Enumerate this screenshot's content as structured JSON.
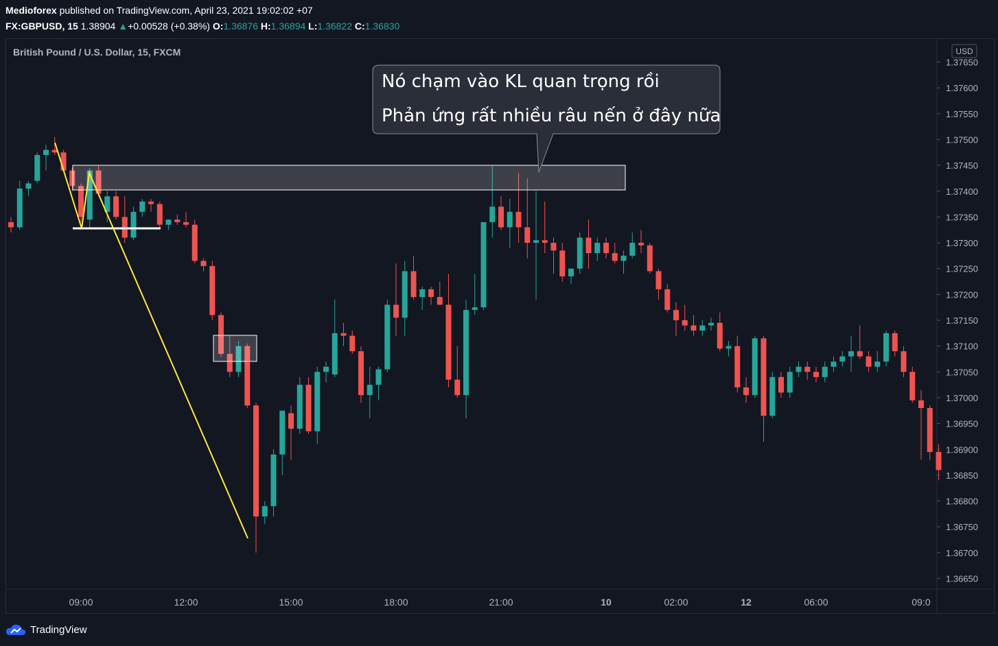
{
  "header": {
    "publisher": "Medioforex",
    "published_text": "published on TradingView.com, April 23, 2021 19:02:02 +07",
    "symbol": "FX:GBPUSD, 15",
    "last": "1.38904",
    "change_arrow": "▲",
    "change": "+0.00528 (+0.38%)",
    "o_label": "O:",
    "o": "1.36876",
    "h_label": "H:",
    "h": "1.36894",
    "l_label": "L:",
    "l": "1.36822",
    "c_label": "C:",
    "c": "1.36830"
  },
  "chart_title": "British Pound / U.S. Dollar, 15, FXCM",
  "currency": "USD",
  "annotation": {
    "line1": "Nó chạm vào KL quan trọng rồi",
    "line2": "Phản ứng rất nhiều râu nến ở đây nữa"
  },
  "footer": {
    "brand": "TradingView"
  },
  "colors": {
    "up": "#26a69a",
    "down": "#ef5350",
    "background": "#131722",
    "trendline": "#ffeb3b"
  },
  "chart_data": {
    "type": "candlestick",
    "title": "British Pound / U.S. Dollar, 15, FXCM",
    "y_ticks": [
      "1.37650",
      "1.37600",
      "1.37550",
      "1.37500",
      "1.37450",
      "1.37400",
      "1.37350",
      "1.37300",
      "1.37250",
      "1.37200",
      "1.37150",
      "1.37100",
      "1.37050",
      "1.37000",
      "1.36950",
      "1.36900",
      "1.36850",
      "1.36800",
      "1.36750",
      "1.36700",
      "1.36650"
    ],
    "x_ticks": [
      {
        "label": "09:00",
        "index": 8
      },
      {
        "label": "12:00",
        "index": 20
      },
      {
        "label": "15:00",
        "index": 32
      },
      {
        "label": "18:00",
        "index": 44
      },
      {
        "label": "21:00",
        "index": 56
      },
      {
        "label": "10",
        "index": 68
      },
      {
        "label": "02:00",
        "index": 76
      },
      {
        "label": "12",
        "index": 84
      },
      {
        "label": "06:00",
        "index": 92
      },
      {
        "label": "09:0",
        "index": 104
      }
    ],
    "ylim": [
      1.3663,
      1.3768
    ],
    "candles": [
      [
        1.3734,
        1.3735,
        1.3732,
        1.3733
      ],
      [
        1.3733,
        1.3742,
        1.37325,
        1.37405
      ],
      [
        1.37405,
        1.3742,
        1.3739,
        1.37415
      ],
      [
        1.3742,
        1.37475,
        1.37415,
        1.3747
      ],
      [
        1.3747,
        1.3749,
        1.3744,
        1.3748
      ],
      [
        1.3748,
        1.37505,
        1.3747,
        1.37475
      ],
      [
        1.37475,
        1.3748,
        1.3744,
        1.3744
      ],
      [
        1.3744,
        1.37445,
        1.374,
        1.3741
      ],
      [
        1.3741,
        1.37415,
        1.3734,
        1.3735
      ],
      [
        1.37345,
        1.37445,
        1.3733,
        1.3744
      ],
      [
        1.3744,
        1.3745,
        1.3739,
        1.37395
      ],
      [
        1.3736,
        1.374,
        1.3734,
        1.3739
      ],
      [
        1.3739,
        1.374,
        1.37345,
        1.3735
      ],
      [
        1.3735,
        1.3739,
        1.373,
        1.3731
      ],
      [
        1.3731,
        1.3737,
        1.37305,
        1.3736
      ],
      [
        1.3736,
        1.37385,
        1.3735,
        1.3738
      ],
      [
        1.3738,
        1.37385,
        1.3736,
        1.37375
      ],
      [
        1.37375,
        1.3738,
        1.3733,
        1.37335
      ],
      [
        1.37335,
        1.37345,
        1.37325,
        1.37345
      ],
      [
        1.37345,
        1.37355,
        1.37335,
        1.3734
      ],
      [
        1.3734,
        1.3736,
        1.3733,
        1.37335
      ],
      [
        1.37335,
        1.37345,
        1.3726,
        1.37265
      ],
      [
        1.37265,
        1.3727,
        1.37245,
        1.37255
      ],
      [
        1.37255,
        1.37265,
        1.3715,
        1.3716
      ],
      [
        1.3716,
        1.37165,
        1.3708,
        1.37085
      ],
      [
        1.37085,
        1.3712,
        1.3704,
        1.3705
      ],
      [
        1.3705,
        1.3711,
        1.3704,
        1.371
      ],
      [
        1.371,
        1.37105,
        1.3698,
        1.36985
      ],
      [
        1.36985,
        1.3699,
        1.367,
        1.3677
      ],
      [
        1.3677,
        1.368,
        1.36755,
        1.3679
      ],
      [
        1.3679,
        1.369,
        1.3677,
        1.3689
      ],
      [
        1.3689,
        1.3697,
        1.3685,
        1.36975
      ],
      [
        1.3697,
        1.36985,
        1.3688,
        1.3694
      ],
      [
        1.3694,
        1.3704,
        1.3693,
        1.37025
      ],
      [
        1.37025,
        1.3704,
        1.3693,
        1.36935
      ],
      [
        1.36935,
        1.3706,
        1.3691,
        1.3705
      ],
      [
        1.3705,
        1.3707,
        1.3703,
        1.3706
      ],
      [
        1.37045,
        1.3719,
        1.3704,
        1.37125
      ],
      [
        1.37125,
        1.37145,
        1.371,
        1.3712
      ],
      [
        1.3712,
        1.3713,
        1.37085,
        1.3709
      ],
      [
        1.3709,
        1.371,
        1.3699,
        1.37005
      ],
      [
        1.37005,
        1.3706,
        1.3696,
        1.37025
      ],
      [
        1.37025,
        1.3706,
        1.36995,
        1.37055
      ],
      [
        1.37055,
        1.3719,
        1.3705,
        1.3718
      ],
      [
        1.3718,
        1.3726,
        1.3712,
        1.37155
      ],
      [
        1.37155,
        1.37265,
        1.3712,
        1.37245
      ],
      [
        1.37245,
        1.37275,
        1.3719,
        1.37195
      ],
      [
        1.37195,
        1.37215,
        1.3717,
        1.3721
      ],
      [
        1.3721,
        1.37215,
        1.3718,
        1.37195
      ],
      [
        1.37195,
        1.37225,
        1.3718,
        1.3718
      ],
      [
        1.3718,
        1.3724,
        1.3702,
        1.37035
      ],
      [
        1.37035,
        1.371,
        1.37,
        1.37005
      ],
      [
        1.37005,
        1.3719,
        1.3696,
        1.3717
      ],
      [
        1.3717,
        1.3724,
        1.3716,
        1.37175
      ],
      [
        1.37175,
        1.3734,
        1.3717,
        1.3734
      ],
      [
        1.3734,
        1.3745,
        1.3731,
        1.3737
      ],
      [
        1.3737,
        1.3739,
        1.37325,
        1.3733
      ],
      [
        1.3733,
        1.37385,
        1.3729,
        1.3736
      ],
      [
        1.3736,
        1.37435,
        1.373,
        1.3733
      ],
      [
        1.3733,
        1.37425,
        1.3727,
        1.373
      ],
      [
        1.373,
        1.374,
        1.3719,
        1.37305
      ],
      [
        1.37305,
        1.3738,
        1.3728,
        1.373
      ],
      [
        1.373,
        1.3731,
        1.3724,
        1.37285
      ],
      [
        1.37285,
        1.373,
        1.37225,
        1.37235
      ],
      [
        1.37235,
        1.3725,
        1.3722,
        1.3725
      ],
      [
        1.3725,
        1.3732,
        1.3724,
        1.3731
      ],
      [
        1.3731,
        1.37345,
        1.3725,
        1.3728
      ],
      [
        1.3728,
        1.3731,
        1.37265,
        1.373
      ],
      [
        1.373,
        1.3731,
        1.3727,
        1.3728
      ],
      [
        1.3728,
        1.373,
        1.3726,
        1.37265
      ],
      [
        1.37265,
        1.37285,
        1.3724,
        1.37275
      ],
      [
        1.37275,
        1.3732,
        1.3727,
        1.373
      ],
      [
        1.373,
        1.37325,
        1.3728,
        1.37295
      ],
      [
        1.37295,
        1.373,
        1.3724,
        1.37245
      ],
      [
        1.37245,
        1.3725,
        1.3719,
        1.3721
      ],
      [
        1.3721,
        1.3722,
        1.37165,
        1.3717
      ],
      [
        1.3717,
        1.37185,
        1.3712,
        1.3715
      ],
      [
        1.3715,
        1.3718,
        1.3713,
        1.3714
      ],
      [
        1.3714,
        1.3716,
        1.3712,
        1.3713
      ],
      [
        1.3713,
        1.3715,
        1.3712,
        1.3714
      ],
      [
        1.3714,
        1.37155,
        1.3713,
        1.37145
      ],
      [
        1.37145,
        1.37165,
        1.3709,
        1.37095
      ],
      [
        1.37095,
        1.3711,
        1.3708,
        1.371
      ],
      [
        1.371,
        1.3712,
        1.3701,
        1.3702
      ],
      [
        1.3702,
        1.3704,
        1.3699,
        1.37005
      ],
      [
        1.37005,
        1.3712,
        1.37,
        1.37115
      ],
      [
        1.37115,
        1.3712,
        1.36915,
        1.36965
      ],
      [
        1.36965,
        1.3705,
        1.3696,
        1.3704
      ],
      [
        1.3704,
        1.3705,
        1.37,
        1.3701
      ],
      [
        1.3701,
        1.3706,
        1.37,
        1.3705
      ],
      [
        1.3705,
        1.3707,
        1.3704,
        1.3706
      ],
      [
        1.3706,
        1.3707,
        1.37035,
        1.3705
      ],
      [
        1.3705,
        1.3706,
        1.3703,
        1.3704
      ],
      [
        1.3704,
        1.3707,
        1.3703,
        1.3706
      ],
      [
        1.3706,
        1.3708,
        1.3705,
        1.3707
      ],
      [
        1.3707,
        1.3709,
        1.3706,
        1.3708
      ],
      [
        1.3708,
        1.3712,
        1.3705,
        1.3709
      ],
      [
        1.3709,
        1.3714,
        1.37075,
        1.3708
      ],
      [
        1.3708,
        1.3709,
        1.3705,
        1.3706
      ],
      [
        1.3706,
        1.3709,
        1.3705,
        1.3707
      ],
      [
        1.3707,
        1.3713,
        1.3706,
        1.37125
      ],
      [
        1.37125,
        1.3713,
        1.3708,
        1.3709
      ],
      [
        1.3709,
        1.371,
        1.3704,
        1.3705
      ],
      [
        1.3705,
        1.3706,
        1.3699,
        1.36995
      ],
      [
        1.36995,
        1.37015,
        1.3688,
        1.3698
      ],
      [
        1.3698,
        1.36985,
        1.3688,
        1.36895
      ],
      [
        1.36895,
        1.3691,
        1.3684,
        1.3686
      ]
    ]
  }
}
